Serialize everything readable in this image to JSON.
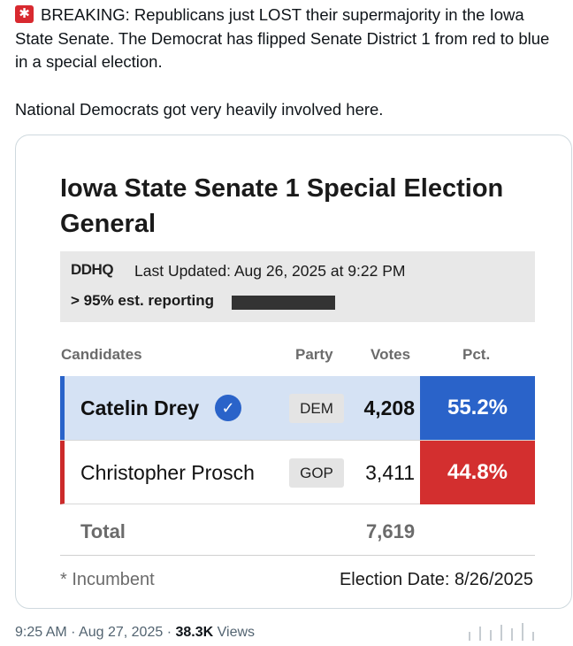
{
  "tweet": {
    "line1": "BREAKING: Republicans just LOST their supermajority in the Iowa State Senate. The Democrat has flipped Senate District 1 from red to blue in a special election.",
    "line2": "National Democrats got very heavily involved here.",
    "icon": "police-siren-icon"
  },
  "card": {
    "title": "Iowa State Senate 1 Special Election General",
    "logo": "DDHQ",
    "updated": "Last Updated: Aug 26, 2025 at 9:22 PM",
    "reporting": "> 95% est. reporting",
    "headers": {
      "candidates": "Candidates",
      "party": "Party",
      "votes": "Votes",
      "pct": "Pct."
    },
    "candidates": [
      {
        "name": "Catelin Drey",
        "party": "DEM",
        "votes": "4,208",
        "pct": "55.2%",
        "winner": true,
        "color": "#2a63c9"
      },
      {
        "name": "Christopher Prosch",
        "party": "GOP",
        "votes": "3,411",
        "pct": "44.8%",
        "winner": false,
        "color": "#d32f2f"
      }
    ],
    "total_label": "Total",
    "total_votes": "7,619",
    "incumbent_note": "* Incumbent",
    "election_date": "Election Date: 8/26/2025"
  },
  "meta": {
    "time": "9:25 AM",
    "date": "Aug 27, 2025",
    "views_count": "38.3K",
    "views_label": "Views"
  }
}
